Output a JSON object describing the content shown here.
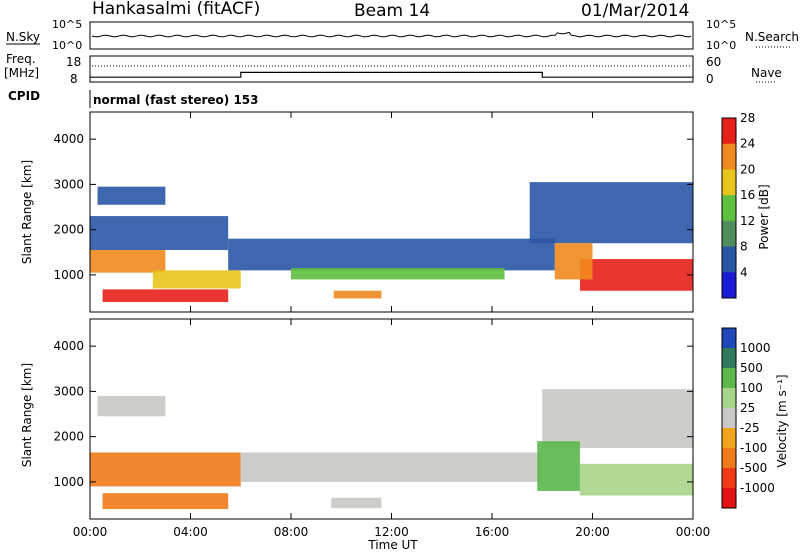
{
  "header": {
    "station": "Hankasalmi (fitACF)",
    "beam": "Beam 14",
    "date": "01/Mar/2014"
  },
  "noise_panel": {
    "left_label": "N.Sky",
    "left_ticks": [
      "10^5",
      "10^0"
    ],
    "right_ticks": [
      "10^5",
      "10^0"
    ],
    "right_label": "N.Search"
  },
  "freq_panel": {
    "left_label_line1": "Freq.",
    "left_label_line2": "[MHz]",
    "left_ticks": [
      "18",
      "8"
    ],
    "right_ticks": [
      "60",
      "0"
    ],
    "right_label": "Nave",
    "frequency_steps": [
      {
        "from": 0.0,
        "to": 6.0,
        "mhz": 10.0
      },
      {
        "from": 6.0,
        "to": 18.0,
        "mhz": 12.0
      },
      {
        "from": 18.0,
        "to": 24.0,
        "mhz": 10.0
      }
    ]
  },
  "cpid": {
    "label": "CPID",
    "mode": "normal (fast stereo) 153"
  },
  "range_axis": {
    "label": "Slant Range [km]",
    "ticks": [
      "1000",
      "2000",
      "3000",
      "4000"
    ]
  },
  "time_axis": {
    "label": "Time UT",
    "ticks": [
      "00:00",
      "04:00",
      "08:00",
      "12:00",
      "16:00",
      "20:00",
      "00:00"
    ]
  },
  "power_scale": {
    "label": "Power [dB]",
    "ticks": [
      "4",
      "8",
      "12",
      "16",
      "20",
      "24",
      "28"
    ],
    "colors": [
      "#1b1bd6",
      "#2a56a6",
      "#4f8e5c",
      "#5fbf3e",
      "#e8c51c",
      "#f08a1e",
      "#e8201a"
    ]
  },
  "velocity_scale": {
    "label": "Velocity [m s⁻¹]",
    "ticks": [
      "1000",
      "500",
      "100",
      "25",
      "-25",
      "-100",
      "-500",
      "-1000"
    ],
    "colors": [
      "#1f49b8",
      "#2e7a5a",
      "#5cb84d",
      "#a8d48a",
      "#c8c8c4",
      "#f2a41c",
      "#f07a18",
      "#ee3a16",
      "#e31212"
    ]
  },
  "chart_data": {
    "type": "heatmap",
    "title": "Hankasalmi (fitACF)   Beam 14   01/Mar/2014",
    "xlabel": "Time UT",
    "ylabel": "Slant Range [km]",
    "xlim": [
      0,
      24
    ],
    "ylim": [
      180,
      4600
    ],
    "grid": false,
    "panels": [
      {
        "name": "Power [dB]",
        "clim": [
          0,
          30
        ],
        "regions": [
          {
            "t0": 0.3,
            "t1": 3.0,
            "r0": 2550,
            "r1": 2950,
            "value": 6
          },
          {
            "t0": 0.0,
            "t1": 5.5,
            "r0": 1550,
            "r1": 2300,
            "value": 7
          },
          {
            "t0": 5.5,
            "t1": 18.5,
            "r0": 1100,
            "r1": 1800,
            "value": 6
          },
          {
            "t0": 8.0,
            "t1": 16.5,
            "r0": 900,
            "r1": 1150,
            "value": 14
          },
          {
            "t0": 17.5,
            "t1": 24.0,
            "r0": 1700,
            "r1": 3050,
            "value": 6
          },
          {
            "t0": 0.0,
            "t1": 3.0,
            "r0": 1050,
            "r1": 1550,
            "value": 22
          },
          {
            "t0": 2.5,
            "t1": 6.0,
            "r0": 700,
            "r1": 1100,
            "value": 20
          },
          {
            "t0": 0.5,
            "t1": 5.5,
            "r0": 400,
            "r1": 680,
            "value": 26
          },
          {
            "t0": 9.7,
            "t1": 11.6,
            "r0": 480,
            "r1": 650,
            "value": 22
          },
          {
            "t0": 19.5,
            "t1": 24.0,
            "r0": 650,
            "r1": 1350,
            "value": 28
          },
          {
            "t0": 18.5,
            "t1": 20.0,
            "r0": 900,
            "r1": 1700,
            "value": 22
          }
        ]
      },
      {
        "name": "Velocity [m s⁻¹]",
        "clim": [
          -1000,
          1000
        ],
        "regions": [
          {
            "t0": 0.3,
            "t1": 3.0,
            "r0": 2450,
            "r1": 2900,
            "value": 0
          },
          {
            "t0": 0.0,
            "t1": 6.0,
            "r0": 900,
            "r1": 1650,
            "value": -150
          },
          {
            "t0": 0.5,
            "t1": 5.5,
            "r0": 400,
            "r1": 750,
            "value": -150
          },
          {
            "t0": 6.0,
            "t1": 18.0,
            "r0": 1000,
            "r1": 1650,
            "value": 0
          },
          {
            "t0": 9.6,
            "t1": 11.6,
            "r0": 420,
            "r1": 650,
            "value": 0
          },
          {
            "t0": 18.0,
            "t1": 24.0,
            "r0": 1750,
            "r1": 3050,
            "value": 0
          },
          {
            "t0": 17.8,
            "t1": 19.5,
            "r0": 800,
            "r1": 1900,
            "value": 300
          },
          {
            "t0": 19.5,
            "t1": 24.0,
            "r0": 700,
            "r1": 1400,
            "value": 80
          }
        ]
      }
    ]
  }
}
